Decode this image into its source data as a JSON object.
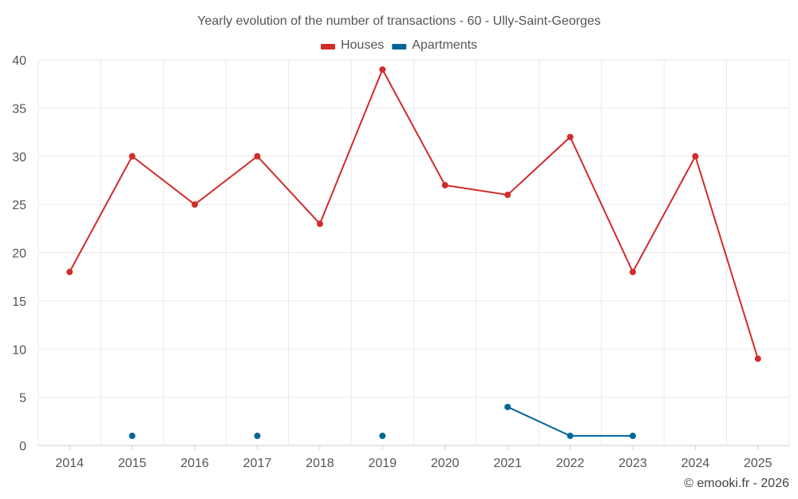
{
  "chart_data": {
    "type": "line",
    "title": "Yearly evolution of the number of transactions - 60 - Ully-Saint-Georges",
    "categories": [
      "2014",
      "2015",
      "2016",
      "2017",
      "2018",
      "2019",
      "2020",
      "2021",
      "2022",
      "2023",
      "2024",
      "2025"
    ],
    "ylim": [
      0,
      40
    ],
    "yticks": [
      0,
      5,
      10,
      15,
      20,
      25,
      30,
      35,
      40
    ],
    "legend_position": "top-center",
    "grid": true,
    "series": [
      {
        "name": "Houses",
        "color": "#d22b2b",
        "values": [
          18,
          30,
          25,
          30,
          23,
          39,
          27,
          26,
          32,
          18,
          30,
          9
        ]
      },
      {
        "name": "Apartments",
        "color": "#006699",
        "values": [
          null,
          1,
          null,
          1,
          null,
          1,
          null,
          4,
          1,
          1,
          null,
          null
        ]
      }
    ],
    "credit": "© emooki.fr - 2026"
  }
}
